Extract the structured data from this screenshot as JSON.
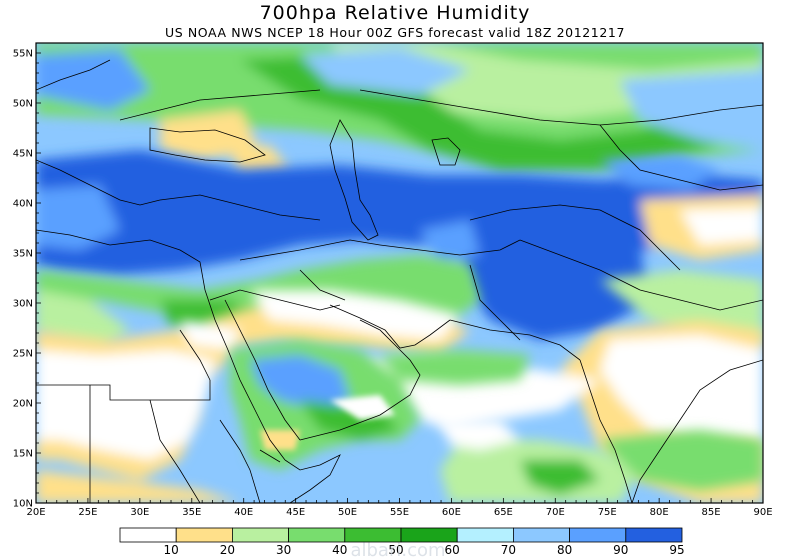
{
  "title": "700hpa Relative Humidity",
  "subtitle": "US NOAA NWS NCEP 18 Hour 00Z GFS forecast valid 18Z 20121217",
  "map": {
    "lon_labels": [
      "20E",
      "25E",
      "30E",
      "35E",
      "40E",
      "45E",
      "50E",
      "55E",
      "60E",
      "65E",
      "70E",
      "75E",
      "80E",
      "85E",
      "90E"
    ],
    "lat_labels": [
      "10N",
      "15N",
      "20N",
      "25N",
      "30N",
      "35N",
      "40N",
      "45N",
      "50N",
      "55N"
    ],
    "lon_range": [
      20,
      90
    ],
    "lat_range": [
      10,
      56
    ]
  },
  "legend": {
    "labels": [
      "10",
      "20",
      "30",
      "40",
      "50",
      "60",
      "70",
      "80",
      "90",
      "95"
    ],
    "colors": [
      "#ffffff",
      "#ffe08a",
      "#b9f0a0",
      "#78dd6e",
      "#3cbd32",
      "#1aa41a",
      "#b4f0ff",
      "#8cc8ff",
      "#5aa0ff",
      "#2360e0"
    ]
  },
  "watermark": "albari.com"
}
